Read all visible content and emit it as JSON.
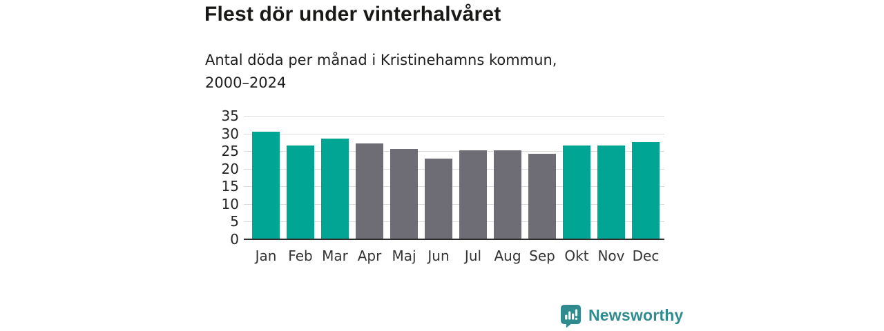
{
  "page": {
    "background": "#ffffff"
  },
  "header": {
    "title": "Flest dör under vinterhalvåret",
    "subtitle_line1": "Antal döda per månad i Kristinehamns kommun,",
    "subtitle_line2": "2000–2024"
  },
  "chart_data": {
    "type": "bar",
    "title": "Flest dör under vinterhalvåret",
    "subtitle": "Antal döda per månad i Kristinehamns kommun, 2000–2024",
    "categories": [
      "Jan",
      "Feb",
      "Mar",
      "Apr",
      "Maj",
      "Jun",
      "Jul",
      "Aug",
      "Sep",
      "Okt",
      "Nov",
      "Dec"
    ],
    "values": [
      30.5,
      26.5,
      28.6,
      27.1,
      25.7,
      22.8,
      25.2,
      25.2,
      24.3,
      26.5,
      26.5,
      27.6
    ],
    "bar_colors": [
      "#00a693",
      "#00a693",
      "#00a693",
      "#6e6c74",
      "#6e6c74",
      "#6e6c74",
      "#6e6c74",
      "#6e6c74",
      "#6e6c74",
      "#00a693",
      "#00a693",
      "#00a693"
    ],
    "xlabel": "",
    "ylabel": "",
    "ylim": [
      0,
      35
    ],
    "yticks": [
      0,
      5,
      10,
      15,
      20,
      25,
      30,
      35
    ],
    "grid": true,
    "legend_position": "none"
  },
  "colors": {
    "winter_bar": "#00a693",
    "summer_bar": "#6e6c74",
    "gridline": "#dcdcdc",
    "axis_line": "#2e2e2e",
    "title_text": "#181816",
    "axis_text": "#242424",
    "brand": "#2f8b8d"
  },
  "footer": {
    "brand_name": "Newsworthy",
    "logo_icon": "bar-chart-speech-bubble-icon"
  }
}
